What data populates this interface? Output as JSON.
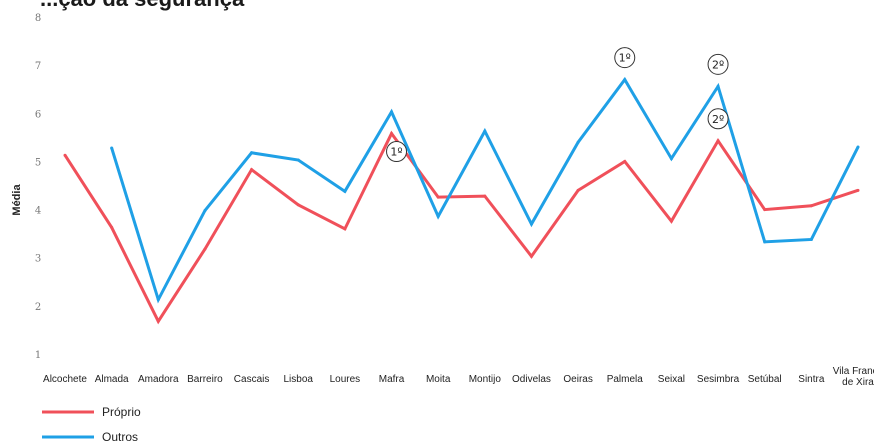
{
  "chart_data": {
    "type": "line",
    "title": "...ção da segurança",
    "ylabel": "Média",
    "ylim": [
      1,
      8
    ],
    "yticks": [
      1,
      2,
      3,
      4,
      5,
      6,
      7,
      8
    ],
    "grid": false,
    "legend_position": "bottom-left",
    "categories": [
      "Alcochete",
      "Almada",
      "Amadora",
      "Barreiro",
      "Cascais",
      "Lisboa",
      "Loures",
      "Mafra",
      "Moita",
      "Montijo",
      "Odivelas",
      "Oeiras",
      "Palmela",
      "Seixal",
      "Sesimbra",
      "Setúbal",
      "Sintra",
      "Vila Franca de Xira"
    ],
    "series": [
      {
        "name": "Próprio",
        "color": "#f0505a",
        "values": [
          5.15,
          3.65,
          1.7,
          3.2,
          4.85,
          4.12,
          3.62,
          5.6,
          4.28,
          4.3,
          3.05,
          4.42,
          5.02,
          3.78,
          5.45,
          4.02,
          4.1,
          4.42
        ]
      },
      {
        "name": "Outros",
        "color": "#1fa0e6",
        "values": [
          null,
          5.3,
          2.15,
          4.0,
          5.2,
          5.05,
          4.4,
          6.05,
          3.88,
          5.65,
          3.72,
          5.42,
          6.72,
          5.08,
          6.58,
          3.35,
          3.4,
          5.32
        ]
      }
    ],
    "annotations": [
      {
        "text": "1º",
        "category": "Mafra",
        "series": "Próprio"
      },
      {
        "text": "1º",
        "category": "Palmela",
        "series": "Outros"
      },
      {
        "text": "2º",
        "category": "Sesimbra",
        "series": "Outros"
      },
      {
        "text": "2º",
        "category": "Sesimbra",
        "series": "Próprio"
      }
    ]
  }
}
